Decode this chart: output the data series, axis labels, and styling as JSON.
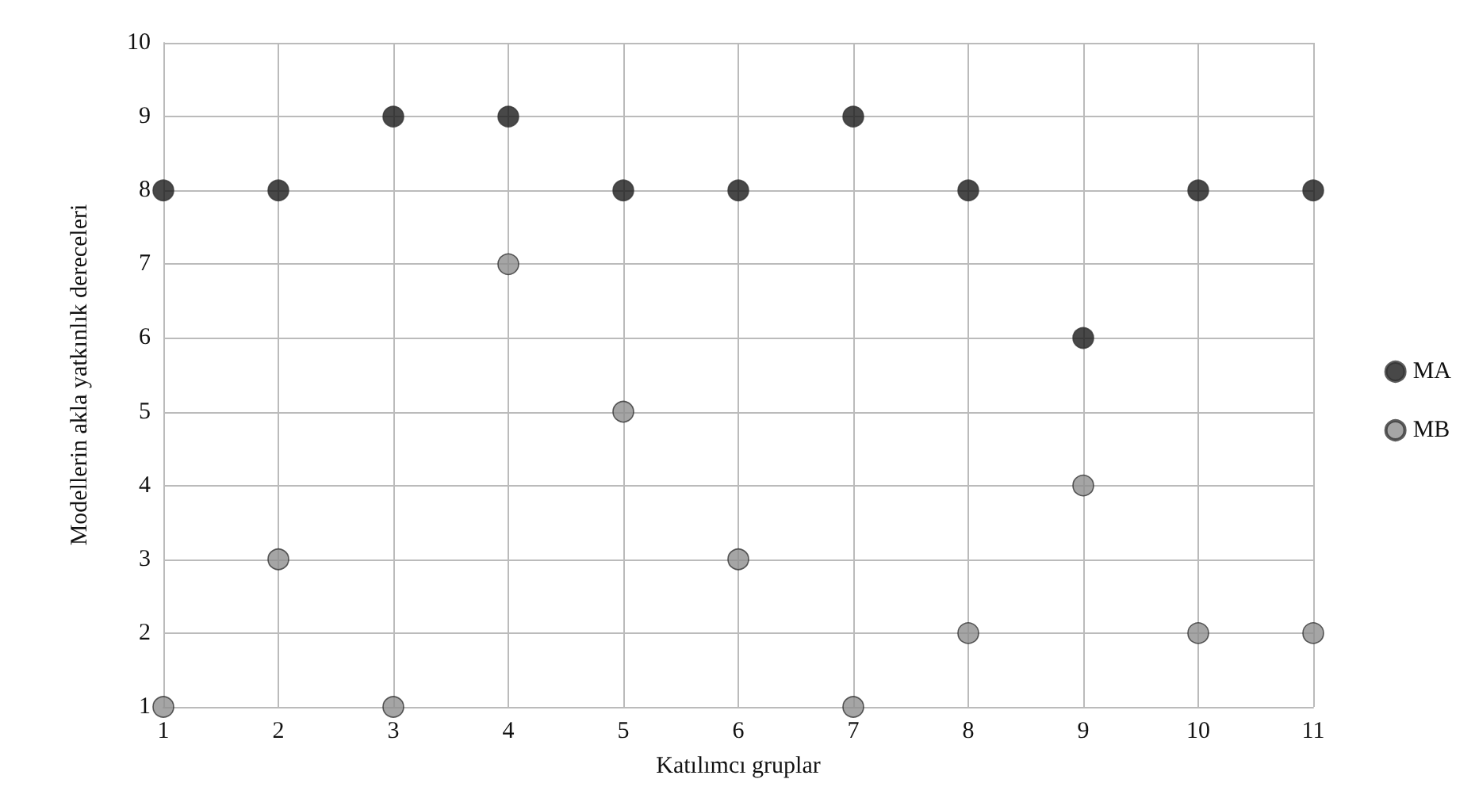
{
  "chart_data": {
    "type": "scatter",
    "xlabel": "Katılımcı gruplar",
    "ylabel": "Modellerin akla yatkınlık dereceleri",
    "x": [
      1,
      2,
      3,
      4,
      5,
      6,
      7,
      8,
      9,
      10,
      11
    ],
    "series": [
      {
        "name": "MA",
        "color": "#1a1a1a",
        "values": [
          8,
          8,
          9,
          9,
          8,
          8,
          9,
          8,
          6,
          8,
          8
        ]
      },
      {
        "name": "MB",
        "color": "#8f8f8f",
        "values": [
          1,
          3,
          1,
          7,
          5,
          3,
          1,
          2,
          4,
          2,
          2
        ]
      }
    ],
    "xlim": [
      1,
      11
    ],
    "xticks": [
      1,
      2,
      3,
      4,
      5,
      6,
      7,
      8,
      9,
      10,
      11
    ],
    "ylim": [
      1,
      10
    ],
    "yticks": [
      1,
      2,
      3,
      4,
      5,
      6,
      7,
      8,
      9,
      10
    ],
    "grid": true,
    "legend": "right",
    "marker": "circle"
  }
}
